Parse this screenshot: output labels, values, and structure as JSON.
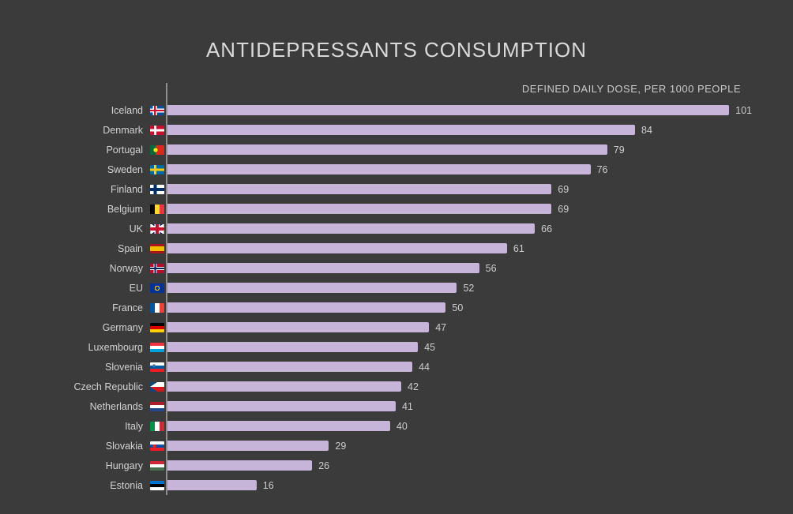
{
  "title": "ANTIDEPRESSANTS CONSUMPTION",
  "subtitle": "DEFINED DAILY DOSE, PER 1000 PEOPLE",
  "colors": {
    "background": "#3b3b3b",
    "bar": "#c6b5d8",
    "axis": "#8f8f8f",
    "text": "#d2d2d2"
  },
  "chart_data": {
    "type": "bar",
    "orientation": "horizontal",
    "title": "ANTIDEPRESSANTS CONSUMPTION",
    "xlabel": "DEFINED DAILY DOSE, PER 1000 PEOPLE",
    "ylabel": "",
    "xlim": [
      0,
      105
    ],
    "grid": false,
    "legend": "none",
    "categories": [
      "Iceland",
      "Denmark",
      "Portugal",
      "Sweden",
      "Finland",
      "Belgium",
      "UK",
      "Spain",
      "Norway",
      "EU",
      "France",
      "Germany",
      "Luxembourg",
      "Slovenia",
      "Czech Republic",
      "Netherlands",
      "Italy",
      "Slovakia",
      "Hungary",
      "Estonia"
    ],
    "values": [
      101,
      84,
      79,
      76,
      69,
      69,
      66,
      61,
      56,
      52,
      50,
      47,
      45,
      44,
      42,
      41,
      40,
      29,
      26,
      16
    ],
    "flag_icons": [
      "iceland",
      "denmark",
      "portugal",
      "sweden",
      "finland",
      "belgium",
      "uk",
      "spain",
      "norway",
      "eu",
      "france",
      "germany",
      "luxembourg",
      "slovenia",
      "czech-republic",
      "netherlands",
      "italy",
      "slovakia",
      "hungary",
      "estonia"
    ]
  }
}
